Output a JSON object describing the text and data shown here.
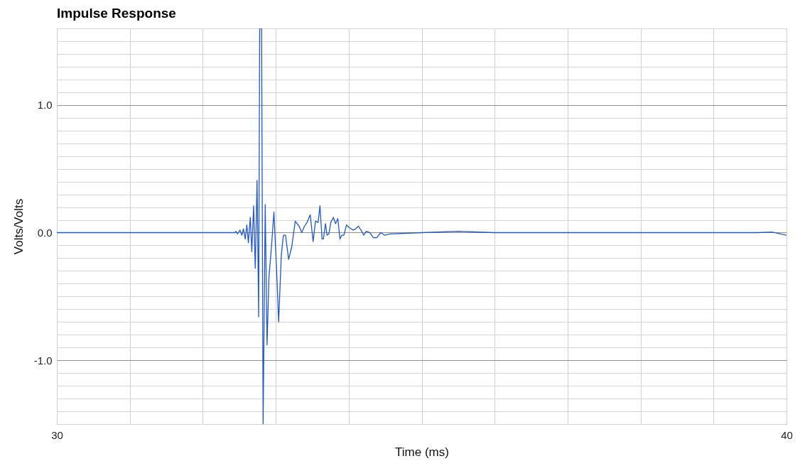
{
  "chart_data": {
    "type": "line",
    "title": "Impulse Response",
    "xlabel": "Time (ms)",
    "ylabel": "Volts/Volts",
    "xlim": [
      30,
      40
    ],
    "xticks": [
      30,
      {
        "value": 31,
        "label": null
      },
      {
        "value": 32,
        "label": null
      },
      {
        "value": 33,
        "label": null
      },
      {
        "value": 34,
        "label": null
      },
      {
        "value": 35,
        "label": null
      },
      {
        "value": 36,
        "label": null
      },
      {
        "value": 37,
        "label": null
      },
      {
        "value": 38,
        "label": null
      },
      {
        "value": 39,
        "label": null
      },
      40
    ],
    "ylim": [
      -1.5,
      1.6
    ],
    "yticks": [
      {
        "value": -1.5,
        "label": null
      },
      {
        "value": -1.4,
        "label": null
      },
      {
        "value": -1.3,
        "label": null
      },
      {
        "value": -1.2,
        "label": null
      },
      {
        "value": -1.1,
        "label": null
      },
      {
        "value": -1,
        "label": "-1.0"
      },
      {
        "value": -0.9,
        "label": null
      },
      {
        "value": -0.8,
        "label": null
      },
      {
        "value": -0.7,
        "label": null
      },
      {
        "value": -0.6,
        "label": null
      },
      {
        "value": -0.5,
        "label": null
      },
      {
        "value": -0.4,
        "label": null
      },
      {
        "value": -0.3,
        "label": null
      },
      {
        "value": -0.2,
        "label": null
      },
      {
        "value": -0.1,
        "label": null
      },
      {
        "value": 0,
        "label": "0.0"
      },
      {
        "value": 0.1,
        "label": null
      },
      {
        "value": 0.2,
        "label": null
      },
      {
        "value": 0.3,
        "label": null
      },
      {
        "value": 0.4,
        "label": null
      },
      {
        "value": 0.5,
        "label": null
      },
      {
        "value": 0.6,
        "label": null
      },
      {
        "value": 0.7,
        "label": null
      },
      {
        "value": 0.8,
        "label": null
      },
      {
        "value": 0.9,
        "label": null
      },
      {
        "value": 1,
        "label": "1.0"
      },
      {
        "value": 1.1,
        "label": null
      },
      {
        "value": 1.2,
        "label": null
      },
      {
        "value": 1.3,
        "label": null
      },
      {
        "value": 1.4,
        "label": null
      },
      {
        "value": 1.5,
        "label": null
      },
      {
        "value": 1.6,
        "label": null
      }
    ],
    "grid": true,
    "marker": "none",
    "line_style": "solid",
    "x": [
      30,
      32.438,
      32.456,
      32.474,
      32.51,
      32.535,
      32.557,
      32.582,
      32.604,
      32.625,
      32.651,
      32.672,
      32.697,
      32.719,
      32.744,
      32.766,
      32.78,
      32.806,
      32.827,
      32.856,
      32.881,
      32.907,
      32.943,
      32.975,
      33.011,
      33.04,
      33.076,
      33.105,
      33.134,
      33.177,
      33.22,
      33.267,
      33.321,
      33.357,
      33.393,
      33.429,
      33.473,
      33.512,
      33.545,
      33.581,
      33.606,
      33.635,
      33.653,
      33.682,
      33.703,
      33.729,
      33.754,
      33.79,
      33.819,
      33.851,
      33.88,
      33.905,
      33.934,
      33.97,
      34.006,
      34.06,
      34.096,
      34.133,
      34.169,
      34.205,
      34.241,
      34.288,
      34.338,
      34.385,
      34.439,
      34.493,
      34.565,
      35,
      35.5,
      36,
      37,
      38,
      39.4,
      39.5,
      39.6,
      39.8,
      40
    ],
    "series": [
      {
        "color": "#1f56d6",
        "values": [
          0,
          0,
          0.01,
          -0.01,
          0.02,
          -0.02,
          0.03,
          -0.05,
          0.06,
          -0.08,
          0.12,
          -0.15,
          0.21,
          -0.28,
          0.41,
          -0.66,
          1.6,
          1.6,
          -1.5,
          0.22,
          -0.88,
          -0.35,
          -0.1,
          0.16,
          -0.28,
          -0.7,
          -0.18,
          -0.02,
          -0.02,
          -0.21,
          -0.11,
          0.09,
          0.05,
          0,
          0.05,
          0.08,
          0.14,
          -0.07,
          0.09,
          0.08,
          0.21,
          -0.05,
          -0.05,
          0.07,
          -0.02,
          -0.01,
          0.08,
          0.12,
          0.07,
          0.11,
          -0.05,
          -0.02,
          -0.02,
          0.06,
          0.04,
          0.02,
          0.03,
          0.05,
          0.02,
          -0.02,
          0.01,
          0,
          -0.04,
          -0.04,
          0,
          -0.02,
          -0.01,
          0,
          0.01,
          0,
          0,
          0,
          0,
          0,
          0,
          0.005,
          -0.02
        ]
      }
    ]
  }
}
